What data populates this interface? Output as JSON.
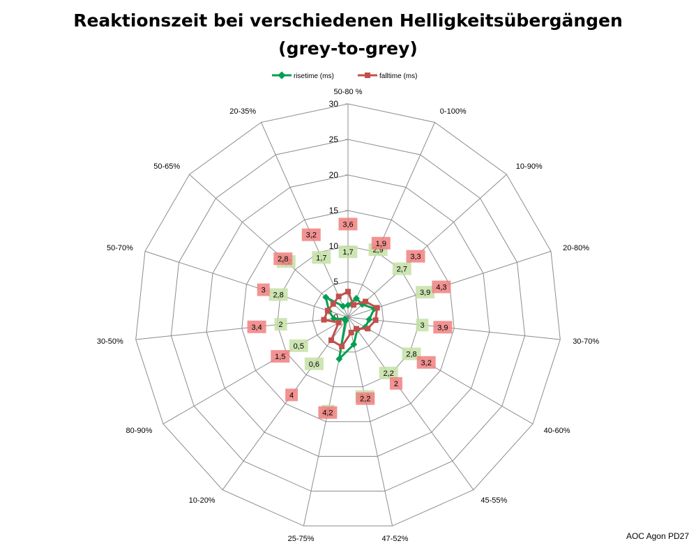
{
  "chart_data": {
    "type": "radar",
    "title_line1": "Reaktionszeit bei verschiedenen Helligkeitsübergängen",
    "title_line2": "(grey-to-grey)",
    "categories": [
      "50-80 %",
      "0-100%",
      "10-90%",
      "20-80%",
      "30-70%",
      "40-60%",
      "45-55%",
      "47-52%",
      "25-75%",
      "10-20%",
      "80-90%",
      "30-50%",
      "50-70%",
      "50-65%",
      "20-35%"
    ],
    "ticks": [
      0,
      5,
      10,
      15,
      20,
      25,
      30
    ],
    "tick_labels": [
      "0",
      "5",
      "10",
      "15",
      "20",
      "25",
      "30"
    ],
    "rmax": 30,
    "legend_position": "top",
    "grid": true,
    "series": [
      {
        "name": "risetime (ms)",
        "color": "#00a050",
        "marker": "diamond",
        "label_bg": "#c4e0a6",
        "values": [
          1.7,
          2.9,
          2.7,
          3.9,
          3,
          2.8,
          2.2,
          3.9,
          6,
          0.6,
          0.5,
          2,
          2.8,
          4.2,
          1.7
        ],
        "labels": [
          "1,7",
          "2,9",
          "2,7",
          "3,9",
          "3",
          "2,8",
          "2,2",
          "3,9",
          "6",
          "0,6",
          "0,5",
          "2",
          "2,8",
          "4,2",
          "1,7"
        ]
      },
      {
        "name": "falltime (ms)",
        "color": "#c0504d",
        "marker": "square",
        "label_bg": "#f08080",
        "values": [
          3.6,
          1.9,
          3.3,
          4.3,
          3.9,
          3.2,
          2,
          2.2,
          4.2,
          4,
          1.5,
          3.4,
          3,
          2.8,
          3.2
        ],
        "labels": [
          "3,6",
          "1,9",
          "3,3",
          "4,3",
          "3,9",
          "3,2",
          "2",
          "2,2",
          "4,2",
          "4",
          "1,5",
          "3,4",
          "3",
          "2,8",
          "3,2"
        ]
      }
    ]
  },
  "footer": {
    "caption": "AOC Agon PD27"
  }
}
